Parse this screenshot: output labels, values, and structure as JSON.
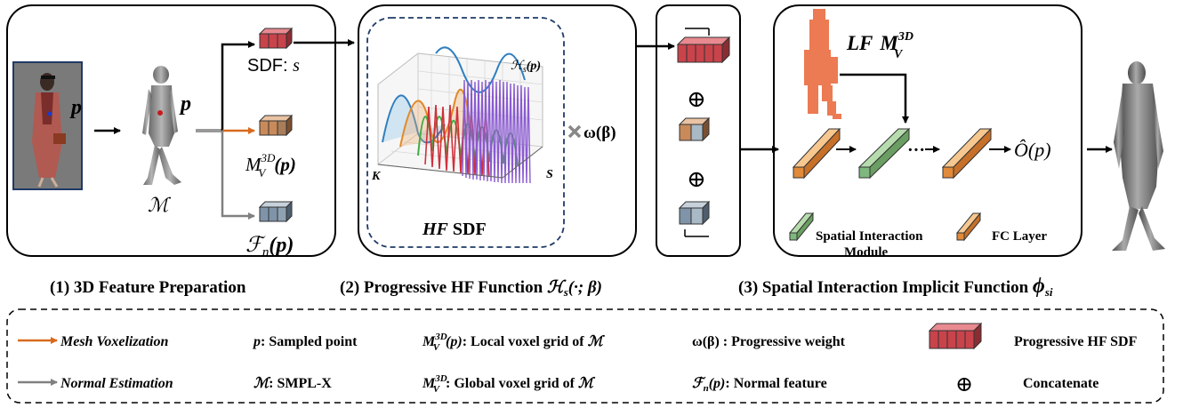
{
  "panel1": {
    "p_label": "p",
    "p_label_mesh": "p",
    "mesh_label": "ℳ",
    "sdf_label": "SDF: ",
    "sdf_var": "s",
    "local_grid_label": "M",
    "local_grid_sup": "3D",
    "local_grid_sub": "V",
    "local_grid_arg": "(p)",
    "normal_label": "ℱ",
    "normal_sub": "n",
    "normal_arg": "(p)",
    "caption": "(1) 3D Feature Preparation"
  },
  "panel2": {
    "plot_title": "ℋ",
    "plot_title_sub": "s",
    "plot_title_arg": "(p)",
    "axis_k": "K",
    "axis_s": "S",
    "box_label_italic": "HF",
    "box_label_rest": " SDF",
    "weight_label": "ω(β)",
    "caption_text": "(2) Progressive HF Function ",
    "caption_math": "ℋ",
    "caption_sub": "s",
    "caption_arg": "(·; β)"
  },
  "panel_concat": {
    "oplus_1": "⊕",
    "oplus_2": "⊕"
  },
  "panel3": {
    "lf_italic": "LF",
    "lf_m": "M",
    "lf_sup": "3D",
    "lf_sub": "V",
    "output_label": "Ô(p)",
    "ellipsis": "···",
    "legend_sim_1": "Spatial Interaction",
    "legend_sim_2": "Module",
    "legend_fc": "FC Layer",
    "caption_text": "(3) Spatial Interaction Implicit Function ",
    "caption_math": "ϕ",
    "caption_sub": "si"
  },
  "legend": {
    "mesh_vox": "Mesh Voxelization",
    "normal_est": "Normal Estimation",
    "sampled_point_sym": "p",
    "sampled_point_text": ": Sampled point",
    "smplx_sym": "ℳ",
    "smplx_text": ": SMPL-X",
    "local_grid_text": ": Local voxel grid of ",
    "global_grid_text": ": Global voxel grid of ",
    "grid_of_sym": "ℳ",
    "weight_sym": "ω(β)",
    "weight_text": " : Progressive weight",
    "normal_sym": "ℱ",
    "normal_text": ": Normal feature",
    "hf_sdf": "Progressive HF SDF",
    "concat_sym": "⊕",
    "concat": "Concatenate"
  },
  "colors": {
    "red_cube": "#c9434b",
    "orange_cube": "#c98a5a",
    "blue_cube": "#7f94a8",
    "orange_arrow": "#d86a1e",
    "gray_arrow": "#808080",
    "fc_layer": "#e08a3a",
    "sim_module": "#7fb87f",
    "lf_figure": "#ec7a52",
    "dash_box": "#1f3a66"
  }
}
